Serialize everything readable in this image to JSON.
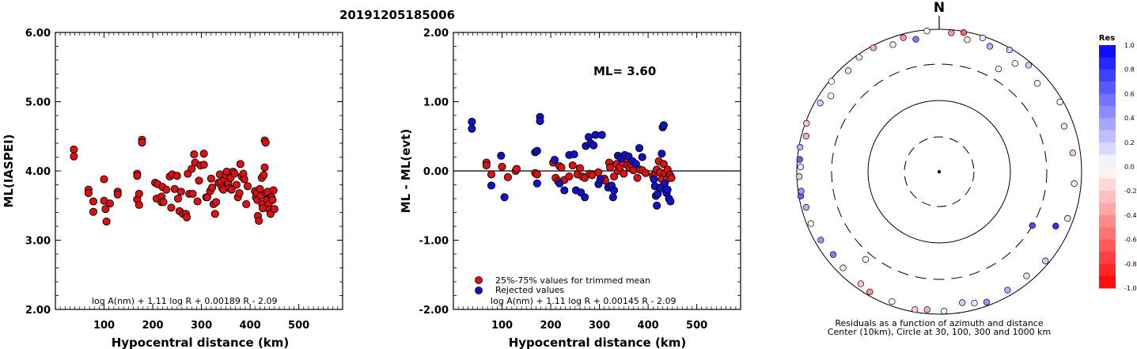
{
  "title": "20191205185006",
  "left_panel": {
    "ylabel": "ML(IASPEI)",
    "xlabel": "Hypocentral distance (km)",
    "formula": "log A(nm) + 1.11 log R + 0.00189 R - 2.09",
    "yticks": [
      "6.00",
      "5.00",
      "4.00",
      "3.00",
      "2.00"
    ],
    "xticks": [
      "100",
      "200",
      "300",
      "400",
      "500"
    ]
  },
  "middle_panel": {
    "ylabel": "ML - ML(evt)",
    "xlabel": "Hypocentral distance (km)",
    "ml_label": "ML=  3.60",
    "formula": "log A(nm) + 1.11 log R + 0.00145 R - 2.09",
    "legend_trimmed": "25%-75% values for trimmed mean",
    "legend_rejected": "Rejected values",
    "yticks": [
      "2.00",
      "1.00",
      "0.00",
      "-1.00",
      "-2.00"
    ],
    "xticks": [
      "100",
      "200",
      "300",
      "400",
      "500"
    ]
  },
  "right_panel": {
    "north": "N",
    "caption_line1": "Residuals as a function of azimuth and distance",
    "caption_line2": "Center (10km), Circle at 30, 100, 300 and 1000 km",
    "colorbar_title": "Res",
    "colorbar_ticks": [
      "1.0",
      "0.8",
      "0.6",
      "0.4",
      "0.2",
      "0.0",
      "-0.2",
      "-0.4",
      "-0.6",
      "-0.8",
      "-1.0"
    ]
  },
  "colors": {
    "trimmed": "#dd1111",
    "rejected": "#1111cc"
  },
  "chart_data": [
    {
      "type": "scatter",
      "title": "20191205185006",
      "xlabel": "Hypocentral distance (km)",
      "ylabel": "ML(IASPEI)",
      "xlim": [
        0,
        590
      ],
      "ylim": [
        2.0,
        6.0
      ],
      "grid": false,
      "points": [
        [
          38,
          4.31
        ],
        [
          38,
          4.21
        ],
        [
          68,
          3.73
        ],
        [
          68,
          3.68
        ],
        [
          78,
          3.56
        ],
        [
          78,
          3.41
        ],
        [
          100,
          3.88
        ],
        [
          100,
          3.57
        ],
        [
          103,
          3.45
        ],
        [
          105,
          3.27
        ],
        [
          112,
          3.53
        ],
        [
          128,
          3.7
        ],
        [
          128,
          3.66
        ],
        [
          168,
          3.96
        ],
        [
          168,
          3.93
        ],
        [
          168,
          3.59
        ],
        [
          172,
          3.67
        ],
        [
          172,
          3.51
        ],
        [
          178,
          4.45
        ],
        [
          178,
          4.41
        ],
        [
          205,
          3.83
        ],
        [
          208,
          3.6
        ],
        [
          210,
          3.81
        ],
        [
          218,
          3.63
        ],
        [
          218,
          3.55
        ],
        [
          220,
          3.77
        ],
        [
          222,
          3.55
        ],
        [
          228,
          3.73
        ],
        [
          235,
          3.92
        ],
        [
          238,
          3.47
        ],
        [
          240,
          3.95
        ],
        [
          245,
          3.74
        ],
        [
          250,
          3.93
        ],
        [
          252,
          3.6
        ],
        [
          255,
          3.42
        ],
        [
          258,
          3.7
        ],
        [
          262,
          3.38
        ],
        [
          268,
          3.38
        ],
        [
          270,
          3.33
        ],
        [
          272,
          3.96
        ],
        [
          275,
          3.67
        ],
        [
          280,
          4.03
        ],
        [
          282,
          3.67
        ],
        [
          285,
          4.24
        ],
        [
          287,
          4.12
        ],
        [
          292,
          3.56
        ],
        [
          295,
          3.86
        ],
        [
          298,
          4.08
        ],
        [
          305,
          4.25
        ],
        [
          305,
          4.09
        ],
        [
          310,
          3.62
        ],
        [
          312,
          3.62
        ],
        [
          318,
          3.71
        ],
        [
          320,
          3.89
        ],
        [
          322,
          3.76
        ],
        [
          325,
          3.52
        ],
        [
          328,
          3.38
        ],
        [
          330,
          3.55
        ],
        [
          335,
          3.83
        ],
        [
          338,
          3.95
        ],
        [
          340,
          3.84
        ],
        [
          342,
          3.76
        ],
        [
          345,
          3.73
        ],
        [
          348,
          3.88
        ],
        [
          350,
          3.94
        ],
        [
          352,
          3.99
        ],
        [
          355,
          3.82
        ],
        [
          358,
          3.75
        ],
        [
          360,
          3.9
        ],
        [
          362,
          3.73
        ],
        [
          365,
          3.99
        ],
        [
          368,
          3.96
        ],
        [
          372,
          3.8
        ],
        [
          375,
          3.62
        ],
        [
          378,
          3.68
        ],
        [
          380,
          4.1
        ],
        [
          383,
          3.92
        ],
        [
          386,
          3.96
        ],
        [
          388,
          3.88
        ],
        [
          392,
          3.52
        ],
        [
          395,
          3.78
        ],
        [
          410,
          3.71
        ],
        [
          412,
          3.62
        ],
        [
          414,
          3.68
        ],
        [
          415,
          3.58
        ],
        [
          416,
          3.35
        ],
        [
          418,
          3.28
        ],
        [
          420,
          3.74
        ],
        [
          422,
          3.64
        ],
        [
          424,
          3.9
        ],
        [
          425,
          3.52
        ],
        [
          426,
          3.46
        ],
        [
          428,
          3.94
        ],
        [
          430,
          4.05
        ],
        [
          430,
          4.44
        ],
        [
          432,
          4.41
        ],
        [
          433,
          3.68
        ],
        [
          435,
          3.58
        ],
        [
          436,
          3.7
        ],
        [
          438,
          3.52
        ],
        [
          440,
          3.44
        ],
        [
          442,
          3.38
        ],
        [
          444,
          3.62
        ],
        [
          446,
          3.58
        ],
        [
          448,
          3.72
        ],
        [
          450,
          3.45
        ]
      ]
    },
    {
      "type": "scatter",
      "xlabel": "Hypocentral distance (km)",
      "ylabel": "ML - ML(evt)",
      "xlim": [
        0,
        590
      ],
      "ylim": [
        -2.0,
        2.0
      ],
      "hline": 0.0,
      "annotation": "ML=  3.60",
      "series": [
        {
          "name": "25%-75% values for trimmed mean",
          "color": "#dd1111",
          "points": [
            [
              68,
              0.12
            ],
            [
              68,
              0.08
            ],
            [
              78,
              -0.05
            ],
            [
              100,
              0.06
            ],
            [
              112,
              -0.09
            ],
            [
              128,
              0.0
            ],
            [
              130,
              0.03
            ],
            [
              168,
              -0.03
            ],
            [
              172,
              -0.05
            ],
            [
              205,
              0.12
            ],
            [
              210,
              -0.1
            ],
            [
              215,
              -0.15
            ],
            [
              218,
              0.07
            ],
            [
              222,
              0.05
            ],
            [
              228,
              -0.13
            ],
            [
              238,
              -0.08
            ],
            [
              245,
              0.08
            ],
            [
              255,
              -0.05
            ],
            [
              260,
              0.04
            ],
            [
              265,
              -0.08
            ],
            [
              270,
              -0.1
            ],
            [
              280,
              -0.04
            ],
            [
              285,
              -0.06
            ],
            [
              298,
              -0.02
            ],
            [
              310,
              -0.11
            ],
            [
              312,
              -0.14
            ],
            [
              320,
              0.12
            ],
            [
              322,
              0.05
            ],
            [
              330,
              -0.08
            ],
            [
              335,
              0.1
            ],
            [
              338,
              0.0
            ],
            [
              342,
              0.05
            ],
            [
              348,
              0.12
            ],
            [
              350,
              -0.04
            ],
            [
              355,
              0.18
            ],
            [
              358,
              0.08
            ],
            [
              362,
              0.04
            ],
            [
              365,
              0.1
            ],
            [
              370,
              0.01
            ],
            [
              378,
              -0.1
            ],
            [
              383,
              0.02
            ],
            [
              388,
              0.01
            ],
            [
              395,
              -0.03
            ],
            [
              410,
              -0.07
            ],
            [
              415,
              -0.03
            ],
            [
              418,
              0.02
            ],
            [
              422,
              0.14
            ],
            [
              425,
              -0.02
            ],
            [
              428,
              -0.12
            ],
            [
              432,
              0.1
            ],
            [
              435,
              -0.04
            ],
            [
              438,
              -0.12
            ],
            [
              440,
              0.02
            ],
            [
              445,
              -0.06
            ],
            [
              448,
              -0.1
            ]
          ]
        },
        {
          "name": "Rejected values",
          "color": "#1111cc",
          "points": [
            [
              38,
              0.71
            ],
            [
              38,
              0.61
            ],
            [
              78,
              -0.21
            ],
            [
              98,
              0.22
            ],
            [
              105,
              -0.38
            ],
            [
              168,
              0.27
            ],
            [
              172,
              0.29
            ],
            [
              172,
              -0.18
            ],
            [
              178,
              0.78
            ],
            [
              178,
              0.72
            ],
            [
              208,
              0.16
            ],
            [
              218,
              -0.18
            ],
            [
              228,
              -0.28
            ],
            [
              238,
              0.23
            ],
            [
              248,
              0.24
            ],
            [
              252,
              -0.28
            ],
            [
              262,
              -0.31
            ],
            [
              270,
              -0.38
            ],
            [
              272,
              0.36
            ],
            [
              278,
              0.49
            ],
            [
              282,
              0.4
            ],
            [
              288,
              0.37
            ],
            [
              292,
              0.52
            ],
            [
              298,
              -0.19
            ],
            [
              302,
              -0.12
            ],
            [
              305,
              0.52
            ],
            [
              318,
              -0.24
            ],
            [
              325,
              -0.21
            ],
            [
              328,
              -0.38
            ],
            [
              330,
              -0.28
            ],
            [
              338,
              0.22
            ],
            [
              345,
              0.18
            ],
            [
              352,
              0.23
            ],
            [
              360,
              0.21
            ],
            [
              368,
              0.14
            ],
            [
              375,
              0.1
            ],
            [
              382,
              0.33
            ],
            [
              388,
              0.2
            ],
            [
              412,
              -0.12
            ],
            [
              414,
              -0.22
            ],
            [
              416,
              -0.36
            ],
            [
              418,
              -0.5
            ],
            [
              420,
              -0.33
            ],
            [
              425,
              -0.24
            ],
            [
              428,
              0.25
            ],
            [
              430,
              0.63
            ],
            [
              432,
              0.66
            ],
            [
              434,
              -0.18
            ],
            [
              436,
              -0.28
            ],
            [
              438,
              -0.32
            ],
            [
              440,
              -0.27
            ],
            [
              443,
              -0.4
            ],
            [
              446,
              -0.44
            ]
          ]
        }
      ]
    },
    {
      "type": "scatter",
      "title": "Residuals as a function of azimuth and distance",
      "subtitle": "Center (10km), Circle at 30, 100, 300 and 1000 km",
      "polar": true,
      "stations": [
        [
          5,
          900,
          -0.4
        ],
        [
          10,
          960,
          -0.6
        ],
        [
          12,
          770,
          -0.1
        ],
        [
          18,
          940,
          0.1
        ],
        [
          22,
          780,
          0.3
        ],
        [
          30,
          940,
          0.2
        ],
        [
          35,
          700,
          0.0
        ],
        [
          40,
          890,
          0.2
        ],
        [
          48,
          700,
          0.0
        ],
        [
          60,
          900,
          0.0
        ],
        [
          70,
          720,
          -0.1
        ],
        [
          82,
          770,
          -0.2
        ],
        [
          95,
          790,
          -0.1
        ],
        [
          110,
          820,
          0.1
        ],
        [
          115,
          620,
          0.8
        ],
        [
          130,
          880,
          0.2
        ],
        [
          140,
          800,
          0.1
        ],
        [
          150,
          820,
          0.3
        ],
        [
          160,
          880,
          0.4
        ],
        [
          165,
          800,
          0.1
        ],
        [
          170,
          720,
          0.2
        ],
        [
          178,
          900,
          0.0
        ],
        [
          185,
          870,
          -0.3
        ],
        [
          190,
          920,
          -0.2
        ],
        [
          200,
          860,
          0.0
        ],
        [
          210,
          880,
          -0.4
        ],
        [
          215,
          820,
          -0.2
        ],
        [
          225,
          800,
          -0.1
        ],
        [
          232,
          760,
          0.5
        ],
        [
          240,
          820,
          0.4
        ],
        [
          248,
          870,
          0.0
        ],
        [
          255,
          850,
          0.3
        ],
        [
          260,
          940,
          0.6
        ],
        [
          262,
          900,
          0.4
        ],
        [
          268,
          920,
          -0.2
        ],
        [
          272,
          880,
          0.1
        ],
        [
          275,
          920,
          0.6
        ],
        [
          280,
          960,
          0.3
        ],
        [
          285,
          850,
          -0.3
        ],
        [
          290,
          960,
          -0.2
        ],
        [
          300,
          840,
          0.2
        ],
        [
          305,
          700,
          0.0
        ],
        [
          310,
          940,
          0.0
        ],
        [
          318,
          800,
          -0.1
        ],
        [
          325,
          910,
          0.1
        ],
        [
          332,
          930,
          -0.3
        ],
        [
          340,
          780,
          -0.1
        ],
        [
          345,
          880,
          -0.4
        ],
        [
          350,
          760,
          0.5
        ],
        [
          355,
          960,
          0.0
        ],
        [
          120,
          300,
          0.7
        ],
        [
          220,
          380,
          0.0
        ],
        [
          30,
          440,
          0.0
        ]
      ],
      "colorbar": {
        "title": "Res",
        "range": [
          -1.0,
          1.0
        ]
      }
    }
  ]
}
